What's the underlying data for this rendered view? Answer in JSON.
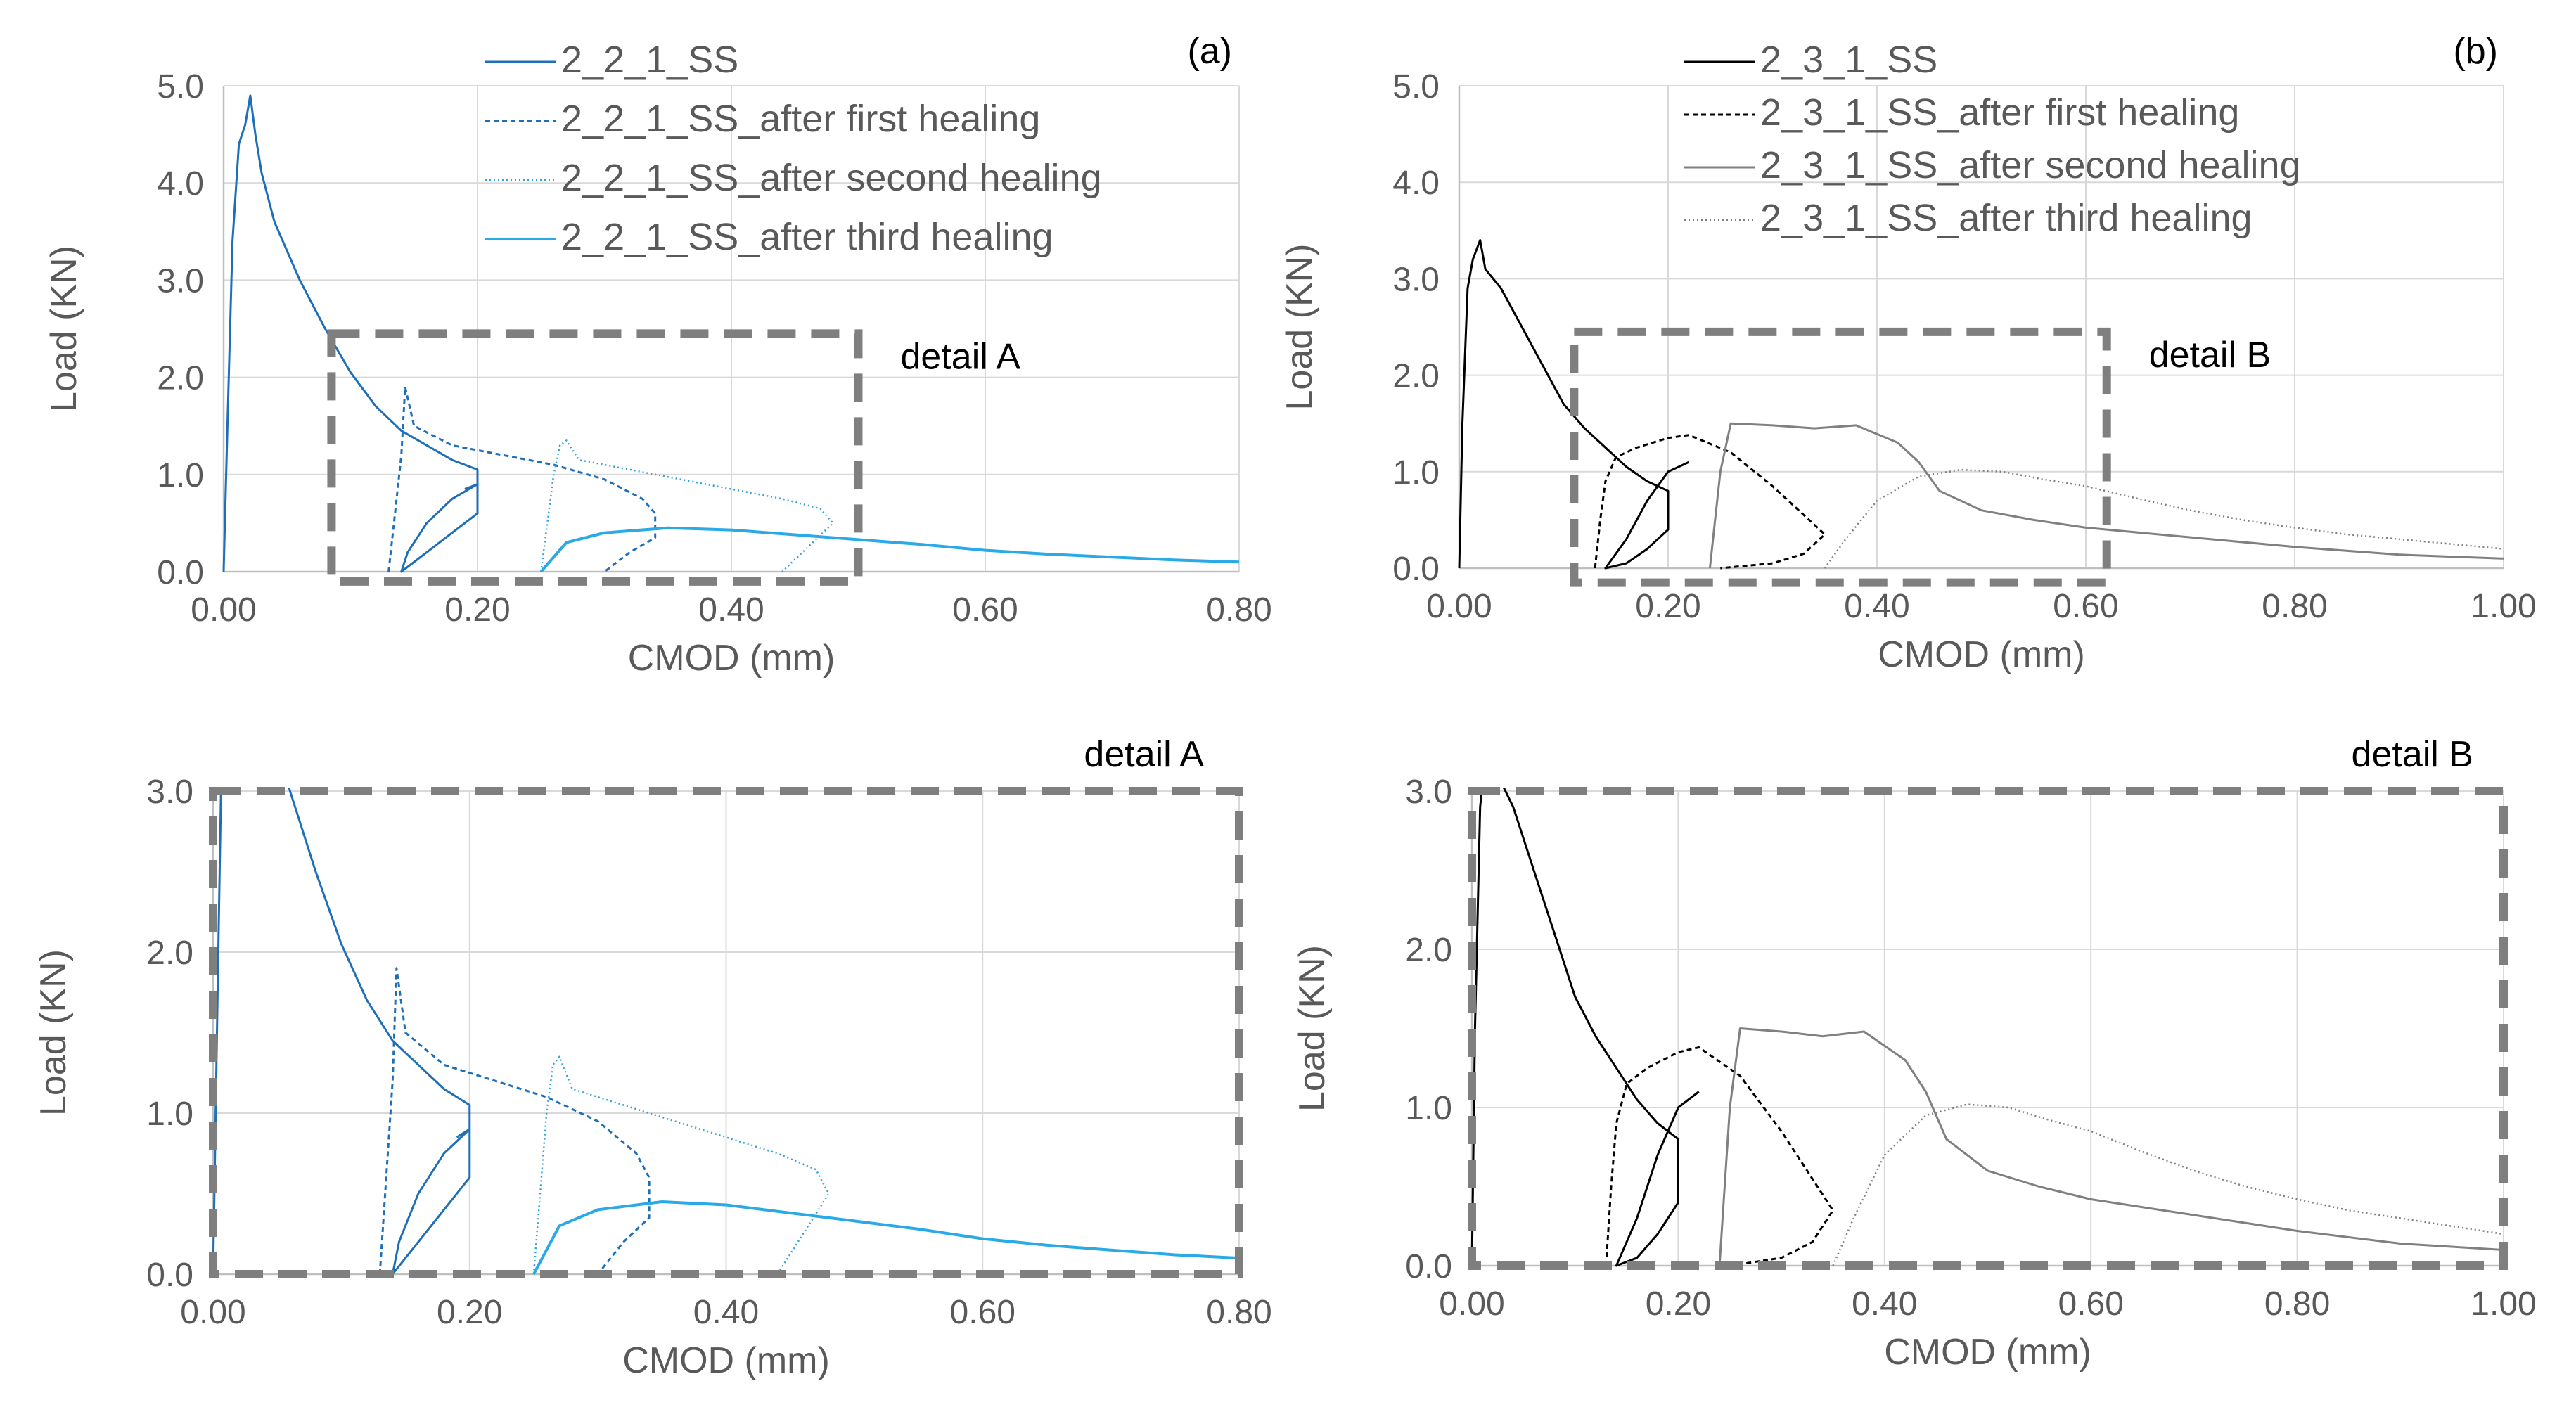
{
  "chart_data": [
    {
      "id": "a",
      "type": "line",
      "panel_label": "(a)",
      "xlabel": "CMOD (mm)",
      "ylabel": "Load (KN)",
      "xlim": [
        0,
        0.8
      ],
      "ylim": [
        0,
        5
      ],
      "x_ticks": [
        "0.00",
        "0.20",
        "0.40",
        "0.60",
        "0.80"
      ],
      "y_ticks": [
        "0.0",
        "1.0",
        "2.0",
        "3.0",
        "4.0",
        "5.0"
      ],
      "grid": true,
      "legend_position": "top-center",
      "detail_box": {
        "label": "detail A",
        "x_range": [
          0.085,
          0.5
        ],
        "y_range": [
          -0.1,
          2.45
        ]
      },
      "series": [
        {
          "name": "2_2_1_SS",
          "color": "#1F6FB8",
          "dash": "solid",
          "width": 3,
          "points": [
            [
              0,
              0
            ],
            [
              0.003,
              1.5
            ],
            [
              0.007,
              3.4
            ],
            [
              0.012,
              4.4
            ],
            [
              0.017,
              4.6
            ],
            [
              0.021,
              4.9
            ],
            [
              0.025,
              4.5
            ],
            [
              0.03,
              4.1
            ],
            [
              0.04,
              3.6
            ],
            [
              0.06,
              3
            ],
            [
              0.08,
              2.5
            ],
            [
              0.1,
              2.05
            ],
            [
              0.12,
              1.7
            ],
            [
              0.14,
              1.45
            ],
            [
              0.16,
              1.3
            ],
            [
              0.18,
              1.15
            ],
            [
              0.2,
              1.05
            ],
            [
              0.2,
              0.6
            ],
            [
              0.18,
              0.4
            ],
            [
              0.16,
              0.2
            ],
            [
              0.14,
              0
            ],
            [
              0.145,
              0.2
            ],
            [
              0.16,
              0.5
            ],
            [
              0.18,
              0.75
            ],
            [
              0.2,
              0.9
            ],
            [
              0.19,
              0.85
            ]
          ]
        },
        {
          "name": "2_2_1_SS_after first healing",
          "color": "#1F6FB8",
          "dash": "7,5",
          "width": 3,
          "points": [
            [
              0.13,
              0
            ],
            [
              0.135,
              0.6
            ],
            [
              0.14,
              1.2
            ],
            [
              0.143,
              1.9
            ],
            [
              0.15,
              1.5
            ],
            [
              0.18,
              1.3
            ],
            [
              0.22,
              1.2
            ],
            [
              0.26,
              1.1
            ],
            [
              0.3,
              0.95
            ],
            [
              0.33,
              0.75
            ],
            [
              0.34,
              0.6
            ],
            [
              0.34,
              0.35
            ],
            [
              0.32,
              0.2
            ],
            [
              0.3,
              0
            ]
          ]
        },
        {
          "name": "2_2_1_SS_after second healing",
          "color": "#2EA3DE",
          "dash": "2,4",
          "width": 2.5,
          "points": [
            [
              0.25,
              0
            ],
            [
              0.255,
              0.5
            ],
            [
              0.26,
              1.0
            ],
            [
              0.265,
              1.3
            ],
            [
              0.27,
              1.35
            ],
            [
              0.28,
              1.15
            ],
            [
              0.32,
              1.05
            ],
            [
              0.36,
              0.95
            ],
            [
              0.4,
              0.85
            ],
            [
              0.44,
              0.75
            ],
            [
              0.47,
              0.65
            ],
            [
              0.48,
              0.5
            ],
            [
              0.46,
              0.25
            ],
            [
              0.44,
              0
            ]
          ]
        },
        {
          "name": "2_2_1_SS_after third healing",
          "color": "#29A9E6",
          "dash": "solid",
          "width": 4,
          "points": [
            [
              0.25,
              0
            ],
            [
              0.27,
              0.3
            ],
            [
              0.3,
              0.4
            ],
            [
              0.35,
              0.45
            ],
            [
              0.4,
              0.43
            ],
            [
              0.45,
              0.38
            ],
            [
              0.5,
              0.33
            ],
            [
              0.55,
              0.28
            ],
            [
              0.6,
              0.22
            ],
            [
              0.65,
              0.18
            ],
            [
              0.7,
              0.15
            ],
            [
              0.75,
              0.12
            ],
            [
              0.8,
              0.1
            ]
          ]
        }
      ]
    },
    {
      "id": "b",
      "type": "line",
      "panel_label": "(b)",
      "xlabel": "CMOD (mm)",
      "ylabel": "Load (KN)",
      "xlim": [
        0,
        1
      ],
      "ylim": [
        0,
        5
      ],
      "x_ticks": [
        "0.00",
        "0.20",
        "0.40",
        "0.60",
        "0.80",
        "1.00"
      ],
      "y_ticks": [
        "0.0",
        "1.0",
        "2.0",
        "3.0",
        "4.0",
        "5.0"
      ],
      "grid": true,
      "legend_position": "top-center",
      "detail_box": {
        "label": "detail B",
        "x_range": [
          0.11,
          0.62
        ],
        "y_range": [
          -0.15,
          2.45
        ]
      },
      "series": [
        {
          "name": "2_3_1_SS",
          "color": "#000000",
          "dash": "solid",
          "width": 3,
          "points": [
            [
              0,
              0
            ],
            [
              0.003,
              1.5
            ],
            [
              0.008,
              2.9
            ],
            [
              0.013,
              3.2
            ],
            [
              0.02,
              3.4
            ],
            [
              0.025,
              3.1
            ],
            [
              0.04,
              2.9
            ],
            [
              0.06,
              2.5
            ],
            [
              0.08,
              2.1
            ],
            [
              0.1,
              1.7
            ],
            [
              0.12,
              1.45
            ],
            [
              0.14,
              1.25
            ],
            [
              0.16,
              1.05
            ],
            [
              0.18,
              0.9
            ],
            [
              0.2,
              0.8
            ],
            [
              0.2,
              0.4
            ],
            [
              0.18,
              0.2
            ],
            [
              0.16,
              0.05
            ],
            [
              0.14,
              0
            ],
            [
              0.16,
              0.3
            ],
            [
              0.18,
              0.7
            ],
            [
              0.2,
              1.0
            ],
            [
              0.22,
              1.1
            ]
          ]
        },
        {
          "name": "2_3_1_SS_after first healing",
          "color": "#000000",
          "dash": "7,5",
          "width": 3,
          "points": [
            [
              0.13,
              0
            ],
            [
              0.135,
              0.5
            ],
            [
              0.14,
              0.9
            ],
            [
              0.15,
              1.15
            ],
            [
              0.17,
              1.25
            ],
            [
              0.2,
              1.35
            ],
            [
              0.22,
              1.38
            ],
            [
              0.26,
              1.2
            ],
            [
              0.3,
              0.85
            ],
            [
              0.33,
              0.55
            ],
            [
              0.35,
              0.35
            ],
            [
              0.33,
              0.15
            ],
            [
              0.3,
              0.05
            ],
            [
              0.25,
              0
            ]
          ]
        },
        {
          "name": "2_3_1_SS_after second healing",
          "color": "#808080",
          "dash": "solid",
          "width": 3,
          "points": [
            [
              0.24,
              0
            ],
            [
              0.245,
              0.5
            ],
            [
              0.25,
              1.0
            ],
            [
              0.26,
              1.5
            ],
            [
              0.3,
              1.48
            ],
            [
              0.34,
              1.45
            ],
            [
              0.38,
              1.48
            ],
            [
              0.42,
              1.3
            ],
            [
              0.44,
              1.1
            ],
            [
              0.46,
              0.8
            ],
            [
              0.5,
              0.6
            ],
            [
              0.55,
              0.5
            ],
            [
              0.6,
              0.42
            ],
            [
              0.7,
              0.32
            ],
            [
              0.8,
              0.22
            ],
            [
              0.9,
              0.14
            ],
            [
              1.0,
              0.1
            ]
          ]
        },
        {
          "name": "2_3_1_SS_after third healing",
          "color": "#808080",
          "dash": "2,4",
          "width": 2.5,
          "points": [
            [
              0.35,
              0
            ],
            [
              0.37,
              0.3
            ],
            [
              0.4,
              0.7
            ],
            [
              0.44,
              0.95
            ],
            [
              0.48,
              1.02
            ],
            [
              0.52,
              1.0
            ],
            [
              0.56,
              0.92
            ],
            [
              0.6,
              0.85
            ],
            [
              0.65,
              0.72
            ],
            [
              0.7,
              0.6
            ],
            [
              0.75,
              0.5
            ],
            [
              0.8,
              0.42
            ],
            [
              0.85,
              0.35
            ],
            [
              0.9,
              0.3
            ],
            [
              0.95,
              0.25
            ],
            [
              1.0,
              0.2
            ]
          ]
        }
      ]
    },
    {
      "id": "a-detail",
      "type": "line",
      "title": "detail A",
      "xlabel": "CMOD (mm)",
      "ylabel": "Load (KN)",
      "xlim": [
        0,
        0.8
      ],
      "ylim": [
        0,
        3
      ],
      "x_ticks": [
        "0.00",
        "0.20",
        "0.40",
        "0.60",
        "0.80"
      ],
      "y_ticks": [
        "0.0",
        "1.0",
        "2.0",
        "3.0"
      ],
      "grid": true,
      "source_panel": "a"
    },
    {
      "id": "b-detail",
      "type": "line",
      "title": "detail B",
      "xlabel": "CMOD (mm)",
      "ylabel": "Load (KN)",
      "xlim": [
        0,
        1
      ],
      "ylim": [
        0,
        3
      ],
      "x_ticks": [
        "0.00",
        "0.20",
        "0.40",
        "0.60",
        "0.80",
        "1.00"
      ],
      "y_ticks": [
        "0.0",
        "1.0",
        "2.0",
        "3.0"
      ],
      "grid": true,
      "source_panel": "b"
    }
  ]
}
